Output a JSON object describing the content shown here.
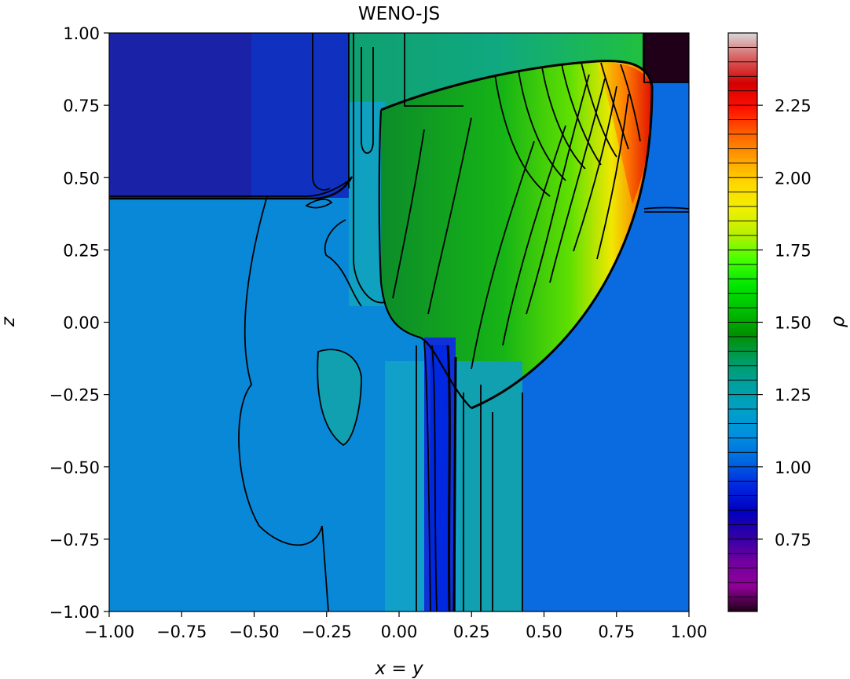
{
  "chart_data": {
    "type": "heatmap",
    "title": "WENO-JS",
    "xlabel": "x = y",
    "ylabel": "z",
    "xlim": [
      -1.0,
      1.0
    ],
    "ylim": [
      -1.0,
      1.0
    ],
    "xticks": [
      "−1.00",
      "−0.75",
      "−0.50",
      "−0.25",
      "0.00",
      "0.25",
      "0.50",
      "0.75",
      "1.00"
    ],
    "xtick_values": [
      -1.0,
      -0.75,
      -0.5,
      -0.25,
      0.0,
      0.25,
      0.5,
      0.75,
      1.0
    ],
    "yticks": [
      "1.00",
      "0.75",
      "0.50",
      "0.25",
      "0.00",
      "−0.25",
      "−0.50",
      "−0.75",
      "−1.00"
    ],
    "ytick_values": [
      1.0,
      0.75,
      0.5,
      0.25,
      0.0,
      -0.25,
      -0.5,
      -0.75,
      -1.0
    ],
    "colorbar": {
      "label": "ρ",
      "vmin": 0.5,
      "vmax": 2.5,
      "tick_labels": [
        "2.25",
        "2.00",
        "1.75",
        "1.50",
        "1.25",
        "1.00",
        "0.75"
      ],
      "tick_values": [
        2.25,
        2.0,
        1.75,
        1.5,
        1.25,
        1.0,
        0.75
      ],
      "levels": 40,
      "colors": [
        "#d8d8d8",
        "#d86060",
        "#d40000",
        "#ff1000",
        "#ff6000",
        "#ffa000",
        "#ffd800",
        "#f0f000",
        "#b8f000",
        "#48ff00",
        "#00e800",
        "#00c000",
        "#009000",
        "#009c60",
        "#00a0a0",
        "#00a0c8",
        "#0090e0",
        "#0068e0",
        "#0028e0",
        "#0000c0",
        "#3000a8",
        "#7000a0",
        "#900098",
        "#200018"
      ]
    },
    "regions": [
      {
        "name": "top-left ambient",
        "rho": 0.93,
        "color": "#1a22a8"
      },
      {
        "name": "lower ambient",
        "rho": 1.05,
        "color": "#0a88d8"
      },
      {
        "name": "right ambient",
        "rho": 1.0,
        "color": "#0a6ae0"
      },
      {
        "name": "top-right corner",
        "rho": 0.55,
        "color": "#200018"
      },
      {
        "name": "shocked bubble",
        "rho": 1.55,
        "color": "#10b010"
      },
      {
        "name": "shock front peak",
        "rho": 2.3,
        "color": "#e83000"
      },
      {
        "name": "jet core",
        "rho": 0.9,
        "color": "#1030d8"
      }
    ]
  }
}
